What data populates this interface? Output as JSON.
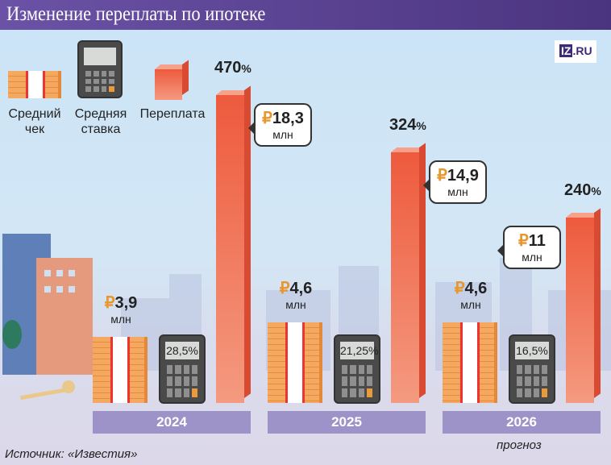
{
  "title": "Изменение переплаты по ипотеке",
  "logo": "IZ.RU",
  "legend": {
    "check": "Средний чек",
    "rate": "Средняя ставка",
    "overpay": "Переплата"
  },
  "source": "Источник: «Известия»",
  "colors": {
    "header": "#5a419a",
    "bar": "#ee5a3d",
    "year_band": "#9d93c8",
    "ruble": "#e8962e"
  },
  "chart_data": {
    "type": "bar",
    "title": "Изменение переплаты по ипотеке",
    "categories": [
      "2024",
      "2025",
      "2026"
    ],
    "category_notes": [
      "",
      "",
      "прогноз"
    ],
    "currency": "₽",
    "unit": "млн",
    "series": [
      {
        "name": "Средний чек",
        "values": [
          3.9,
          4.6,
          4.6
        ],
        "labels": [
          "3,9",
          "4,6",
          "4,6"
        ]
      },
      {
        "name": "Средняя ставка",
        "values": [
          28.5,
          21.25,
          16.5
        ],
        "labels": [
          "28,5%",
          "21,25%",
          "16,5%"
        ]
      },
      {
        "name": "Переплата",
        "values": [
          18.3,
          14.9,
          11
        ],
        "labels": [
          "18,3",
          "14,9",
          "11"
        ],
        "percent": [
          "470",
          "324",
          "240"
        ]
      }
    ]
  }
}
